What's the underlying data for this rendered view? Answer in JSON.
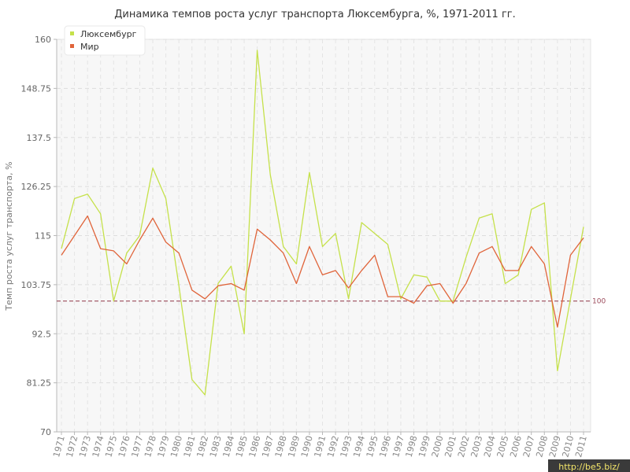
{
  "chart_data": {
    "type": "line",
    "title": "Динамика темпов роста услуг транспорта Люксембурга, %, 1971-2011 гг.",
    "ylabel": "Темп роста услуг транспорта, %",
    "xlabel": "",
    "ylim": [
      70,
      160
    ],
    "yticks": [
      "70",
      "81.25",
      "92.5",
      "103.75",
      "115",
      "126.25",
      "137.5",
      "148.75",
      "160"
    ],
    "categories": [
      "1971",
      "1972",
      "1973",
      "1974",
      "1975",
      "1976",
      "1977",
      "1978",
      "1979",
      "1980",
      "1981",
      "1982",
      "1983",
      "1984",
      "1985",
      "1986",
      "1987",
      "1988",
      "1989",
      "1990",
      "1991",
      "1992",
      "1993",
      "1994",
      "1995",
      "1996",
      "1997",
      "1998",
      "1999",
      "2000",
      "2001",
      "2002",
      "2003",
      "2004",
      "2005",
      "2006",
      "2007",
      "2008",
      "2009",
      "2010",
      "2011"
    ],
    "series": [
      {
        "name": "Люксембург",
        "color": "#c5e14a",
        "values": [
          112,
          123.5,
          124.5,
          120,
          100,
          111,
          115,
          130.5,
          123.5,
          103.5,
          82,
          78.5,
          104,
          108,
          92.5,
          157.5,
          129,
          112.5,
          108.5,
          129.5,
          112.5,
          115.5,
          100.5,
          118,
          115.5,
          113,
          100.5,
          106,
          105.5,
          100,
          100,
          110,
          119,
          120,
          104,
          106,
          121,
          122.5,
          84,
          100.5,
          117
        ]
      },
      {
        "name": "Мир",
        "color": "#e0643a",
        "values": [
          110.5,
          115,
          119.5,
          112,
          111.5,
          108.5,
          114,
          119,
          113.5,
          111,
          102.5,
          100.5,
          103.5,
          104,
          102.5,
          116.5,
          114,
          111,
          104,
          112.5,
          106,
          107,
          103,
          107,
          110.5,
          101,
          101,
          99.5,
          103.5,
          104,
          99.5,
          104,
          111,
          112.5,
          107,
          107,
          112.5,
          108.5,
          94,
          110.5,
          114.5
        ]
      }
    ],
    "reference_line": {
      "value": 100,
      "label": "100",
      "color": "#9b4a5a"
    },
    "grid": true,
    "legend_placement": "top-left"
  },
  "watermark": "http://be5.biz/"
}
